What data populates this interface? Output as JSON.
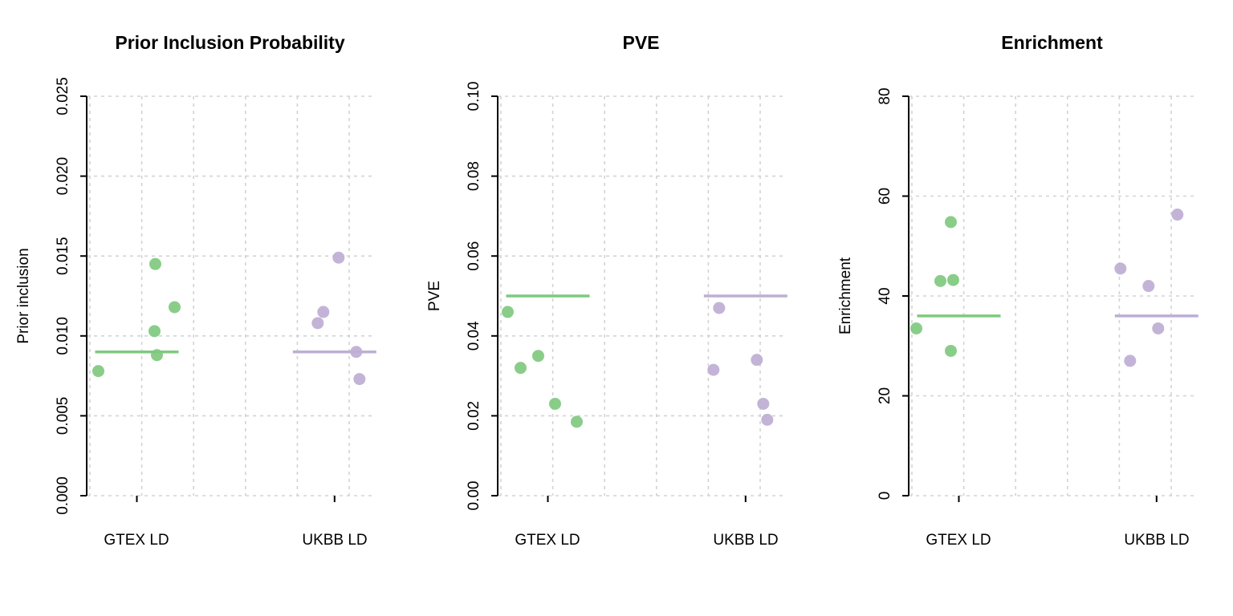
{
  "figure": {
    "background": "#ffffff",
    "grid_color": "#D3D3D3",
    "axis_color": "#000000"
  },
  "chart_data": [
    {
      "type": "scatter",
      "title": "Prior Inclusion Probability",
      "ylabel": "Prior inclusion",
      "xlabel": "",
      "ylim": [
        0,
        0.025
      ],
      "grid": true,
      "legend": "none",
      "ytick_labels": [
        "0.000",
        "0.005",
        "0.010",
        "0.015",
        "0.020",
        "0.025"
      ],
      "ytick_values": [
        0,
        0.005,
        0.01,
        0.015,
        0.02,
        0.025
      ],
      "categories": [
        {
          "label": "GTEX LD",
          "color": "#7FC97F",
          "mean_line": 0.009,
          "points": [
            {
              "dx": -48,
              "y": 0.0078
            },
            {
              "dx": 23,
              "y": 0.0145
            },
            {
              "dx": 22,
              "y": 0.0103
            },
            {
              "dx": 25,
              "y": 0.0088
            },
            {
              "dx": 47,
              "y": 0.0118
            }
          ]
        },
        {
          "label": "UKBB LD",
          "color": "#BEAED4",
          "mean_line": 0.009,
          "points": [
            {
              "dx": -21,
              "y": 0.0108
            },
            {
              "dx": 5,
              "y": 0.0149
            },
            {
              "dx": -14,
              "y": 0.0115
            },
            {
              "dx": 27,
              "y": 0.009
            },
            {
              "dx": 31,
              "y": 0.0073
            }
          ]
        }
      ]
    },
    {
      "type": "scatter",
      "title": "PVE",
      "ylabel": "PVE",
      "xlabel": "",
      "ylim": [
        0,
        0.1
      ],
      "grid": true,
      "legend": "none",
      "ytick_labels": [
        "0.00",
        "0.02",
        "0.04",
        "0.06",
        "0.08",
        "0.10"
      ],
      "ytick_values": [
        0,
        0.02,
        0.04,
        0.06,
        0.08,
        0.1
      ],
      "categories": [
        {
          "label": "GTEX LD",
          "color": "#7FC97F",
          "mean_line": 0.05,
          "points": [
            {
              "dx": -50,
              "y": 0.046
            },
            {
              "dx": -34,
              "y": 0.032
            },
            {
              "dx": -12,
              "y": 0.035
            },
            {
              "dx": 9,
              "y": 0.023
            },
            {
              "dx": 36,
              "y": 0.0185
            }
          ]
        },
        {
          "label": "UKBB LD",
          "color": "#BEAED4",
          "mean_line": 0.05,
          "points": [
            {
              "dx": -33,
              "y": 0.047
            },
            {
              "dx": -40,
              "y": 0.0315
            },
            {
              "dx": 14,
              "y": 0.034
            },
            {
              "dx": 22,
              "y": 0.023
            },
            {
              "dx": 27,
              "y": 0.019
            }
          ]
        }
      ]
    },
    {
      "type": "scatter",
      "title": "Enrichment",
      "ylabel": "Enrichment",
      "xlabel": "",
      "ylim": [
        0,
        80
      ],
      "grid": true,
      "legend": "none",
      "ytick_labels": [
        "0",
        "20",
        "40",
        "60",
        "80"
      ],
      "ytick_values": [
        0,
        20,
        40,
        60,
        80
      ],
      "categories": [
        {
          "label": "GTEX LD",
          "color": "#7FC97F",
          "mean_line": 36,
          "points": [
            {
              "dx": -53,
              "y": 33.5
            },
            {
              "dx": -10,
              "y": 54.8
            },
            {
              "dx": -23,
              "y": 43
            },
            {
              "dx": -7,
              "y": 43.2
            },
            {
              "dx": -10,
              "y": 29
            }
          ]
        },
        {
          "label": "UKBB LD",
          "color": "#BEAED4",
          "mean_line": 36,
          "points": [
            {
              "dx": -45,
              "y": 45.5
            },
            {
              "dx": -10,
              "y": 42
            },
            {
              "dx": -33,
              "y": 27
            },
            {
              "dx": 2,
              "y": 33.5
            },
            {
              "dx": 26,
              "y": 56.3
            }
          ]
        }
      ]
    }
  ]
}
